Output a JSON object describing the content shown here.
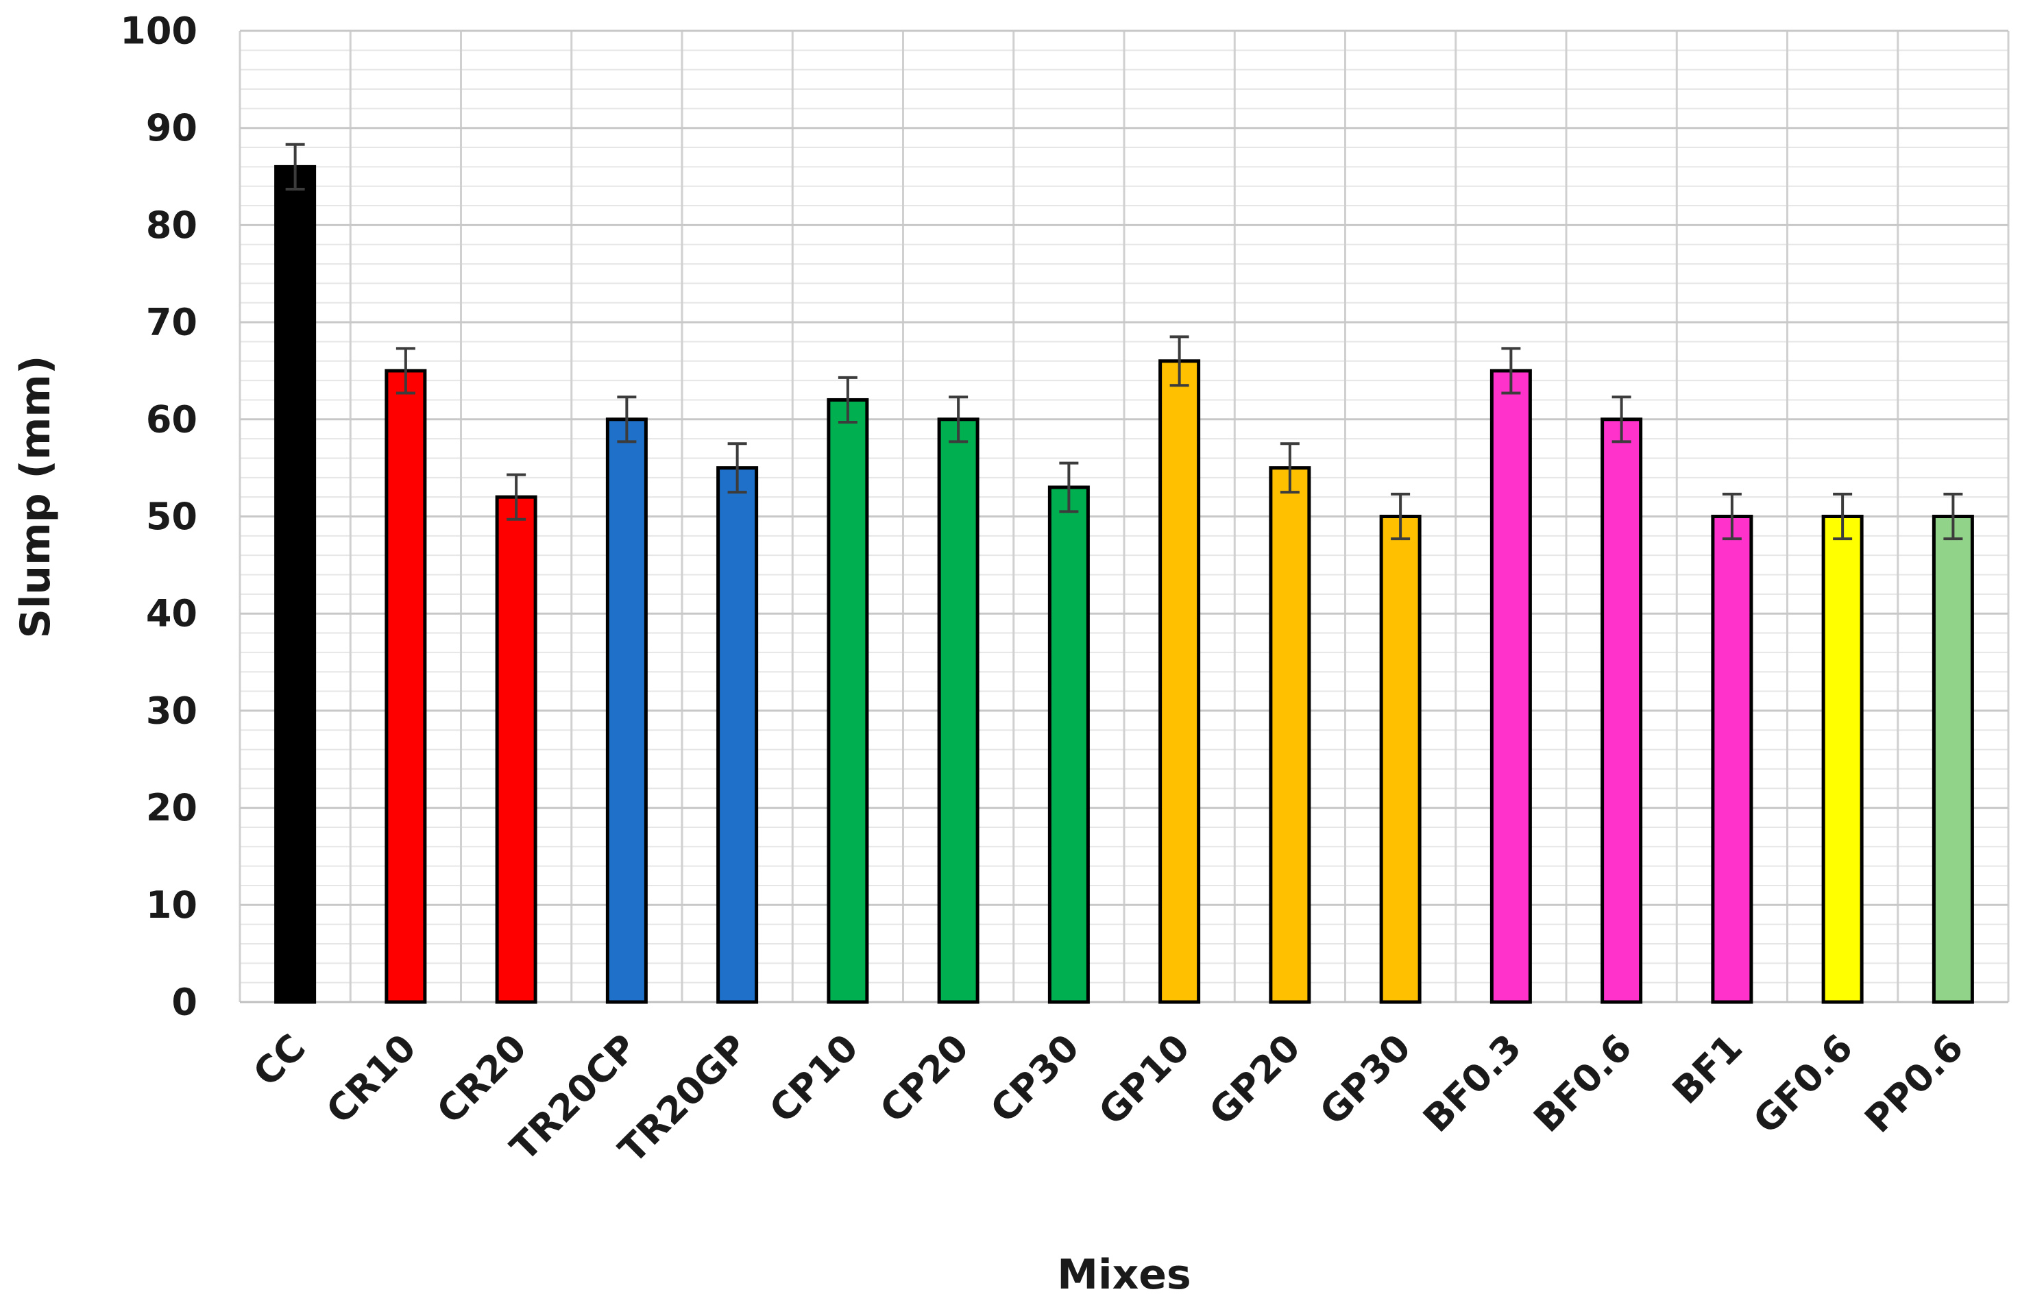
{
  "chart_data": {
    "type": "bar",
    "title": "",
    "xlabel": "Mixes",
    "ylabel": "Slump (mm)",
    "ylim": [
      0,
      100
    ],
    "yticks": [
      0,
      10,
      20,
      30,
      40,
      50,
      60,
      70,
      80,
      90,
      100
    ],
    "minor_grid_step": 2,
    "grid": true,
    "legend": "none",
    "categories": [
      "CC",
      "CR10",
      "CR20",
      "TR20CP",
      "TR20GP",
      "CP10",
      "CP20",
      "CP30",
      "GP10",
      "GP20",
      "GP30",
      "BF0.3",
      "BF0.6",
      "BF1",
      "GF0.6",
      "PP0.6"
    ],
    "values": [
      86,
      65,
      52,
      60,
      55,
      62,
      60,
      53,
      66,
      55,
      50,
      65,
      60,
      50,
      50,
      50
    ],
    "error": [
      2.3,
      2.3,
      2.3,
      2.3,
      2.5,
      2.3,
      2.3,
      2.5,
      2.5,
      2.5,
      2.3,
      2.3,
      2.3,
      2.3,
      2.3,
      2.3
    ],
    "colors": [
      "#000000",
      "#ff0000",
      "#ff0000",
      "#1f70c8",
      "#1f70c8",
      "#00b050",
      "#00b050",
      "#00b050",
      "#ffc000",
      "#ffc000",
      "#ffc000",
      "#ff33cc",
      "#ff33cc",
      "#ff33cc",
      "#ffff00",
      "#92d38a"
    ]
  }
}
